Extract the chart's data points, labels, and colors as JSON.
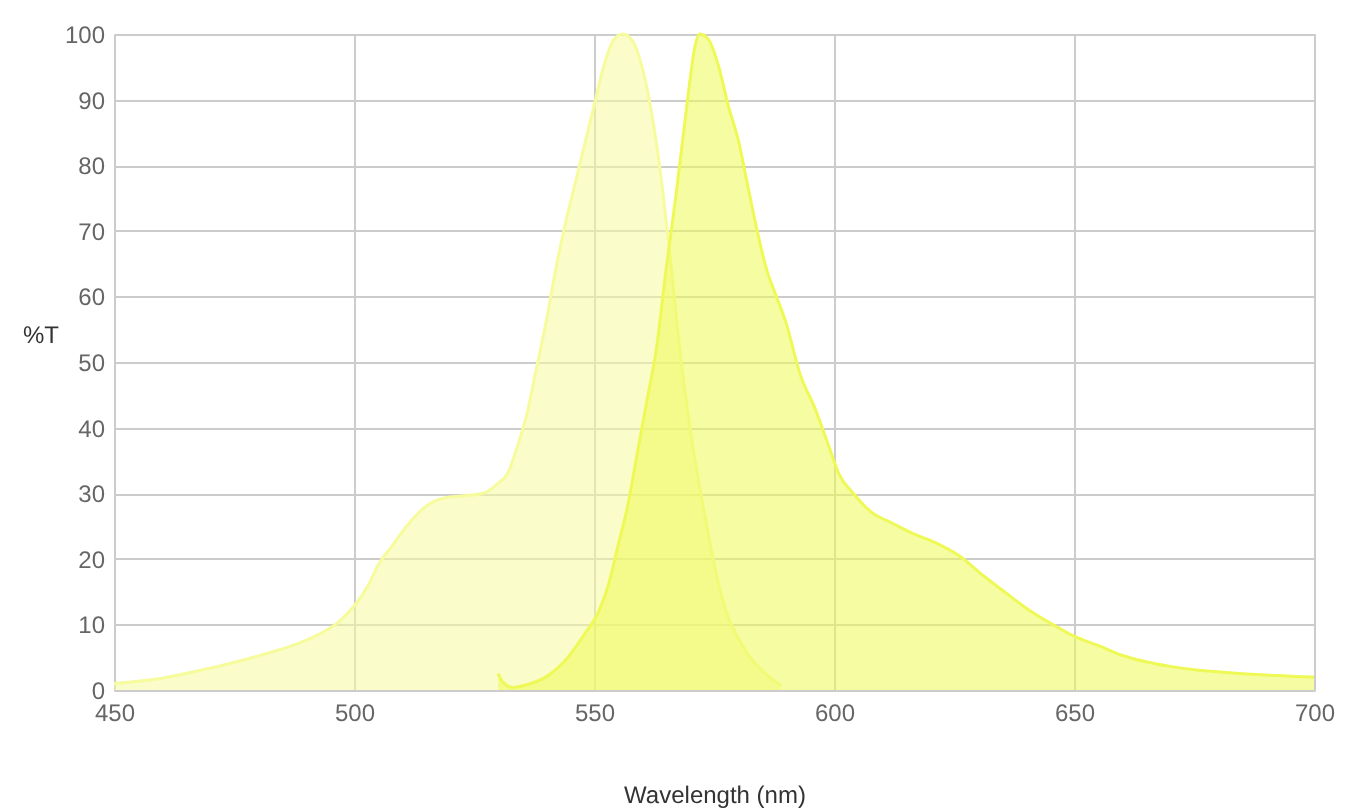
{
  "chart_data": {
    "type": "area",
    "xlabel": "Wavelength (nm)",
    "ylabel": "%T",
    "xlim": [
      450,
      700
    ],
    "ylim": [
      0,
      100
    ],
    "xticks": [
      450,
      500,
      550,
      600,
      650,
      700
    ],
    "yticks": [
      0,
      10,
      20,
      30,
      40,
      50,
      60,
      70,
      80,
      90,
      100
    ],
    "grid": true,
    "series": [
      {
        "color": "#f6fb9c",
        "x": [
          450,
          460,
          468,
          475,
          482,
          488,
          493,
          497,
          500,
          503,
          505,
          508,
          511,
          515,
          519,
          523,
          527,
          530,
          532,
          534,
          536,
          538,
          540,
          542,
          544,
          546,
          548,
          550,
          552,
          554,
          556,
          558,
          560,
          562,
          564,
          566,
          568,
          570,
          572,
          574,
          576,
          578,
          580,
          582,
          585,
          589
        ],
        "values": [
          1,
          1.8,
          3,
          4.2,
          5.6,
          7,
          8.6,
          10.5,
          12.8,
          16,
          19,
          22,
          25,
          28,
          29.3,
          29.6,
          30,
          31.5,
          33,
          37,
          42,
          49,
          56,
          64,
          71,
          77,
          83,
          89,
          95,
          99,
          100,
          99,
          95,
          88,
          78,
          65,
          51,
          40,
          31,
          23,
          16,
          11,
          8,
          5.5,
          3,
          0.6
        ]
      },
      {
        "color": "#eef955",
        "x": [
          530,
          531,
          533,
          536,
          540,
          544,
          548,
          551,
          553,
          555,
          557,
          559,
          561,
          563,
          565,
          567,
          569,
          570,
          571,
          572,
          574,
          576,
          578,
          580,
          582,
          584,
          586,
          588,
          590,
          593,
          596,
          599,
          601,
          604,
          608,
          612,
          616,
          621,
          626,
          631,
          636,
          641,
          646,
          650,
          655,
          660,
          665,
          670,
          676,
          683,
          690,
          699,
          700
        ],
        "values": [
          2.5,
          1.2,
          0.4,
          0.8,
          2,
          4.5,
          8.5,
          12,
          16,
          22,
          28,
          36,
          44,
          52,
          64,
          75,
          87,
          93,
          98,
          100,
          99,
          95,
          89,
          84,
          77,
          70,
          64,
          60,
          56,
          48,
          43,
          37,
          33,
          30,
          27,
          25.5,
          24,
          22.5,
          20.5,
          17.5,
          14.7,
          12,
          9.8,
          8.2,
          6.8,
          5.3,
          4.3,
          3.6,
          3,
          2.6,
          2.3,
          2,
          2
        ]
      }
    ]
  }
}
